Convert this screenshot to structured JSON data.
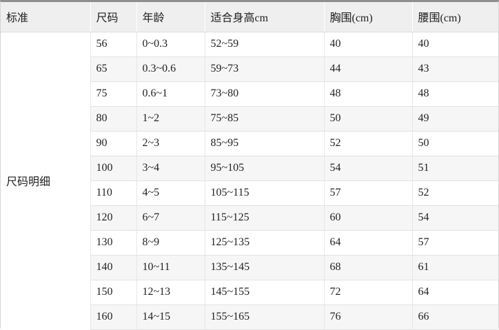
{
  "table": {
    "headers": {
      "standard": "标准",
      "size": "尺码",
      "age": "年龄",
      "height": "适合身高cm",
      "chest": "胸围(cm)",
      "waist": "腰围(cm)"
    },
    "standard_label": "尺码明细",
    "rows": [
      {
        "size": "56",
        "age": "0~0.3",
        "height": "52~59",
        "chest": "40",
        "waist": "40"
      },
      {
        "size": "65",
        "age": "0.3~0.6",
        "height": "59~73",
        "chest": "44",
        "waist": "43"
      },
      {
        "size": "75",
        "age": "0.6~1",
        "height": "73~80",
        "chest": "48",
        "waist": "48"
      },
      {
        "size": "80",
        "age": "1~2",
        "height": "75~85",
        "chest": "50",
        "waist": "49"
      },
      {
        "size": "90",
        "age": "2~3",
        "height": "85~95",
        "chest": "52",
        "waist": "50"
      },
      {
        "size": "100",
        "age": "3~4",
        "height": "95~105",
        "chest": "54",
        "waist": "51"
      },
      {
        "size": "110",
        "age": "4~5",
        "height": "105~115",
        "chest": "57",
        "waist": "52"
      },
      {
        "size": "120",
        "age": "6~7",
        "height": "115~125",
        "chest": "60",
        "waist": "54"
      },
      {
        "size": "130",
        "age": "8~9",
        "height": "125~135",
        "chest": "64",
        "waist": "57"
      },
      {
        "size": "140",
        "age": "10~11",
        "height": "135~145",
        "chest": "68",
        "waist": "61"
      },
      {
        "size": "150",
        "age": "12~13",
        "height": "145~155",
        "chest": "72",
        "waist": "64"
      },
      {
        "size": "160",
        "age": "14~15",
        "height": "155~165",
        "chest": "76",
        "waist": "66"
      }
    ]
  }
}
